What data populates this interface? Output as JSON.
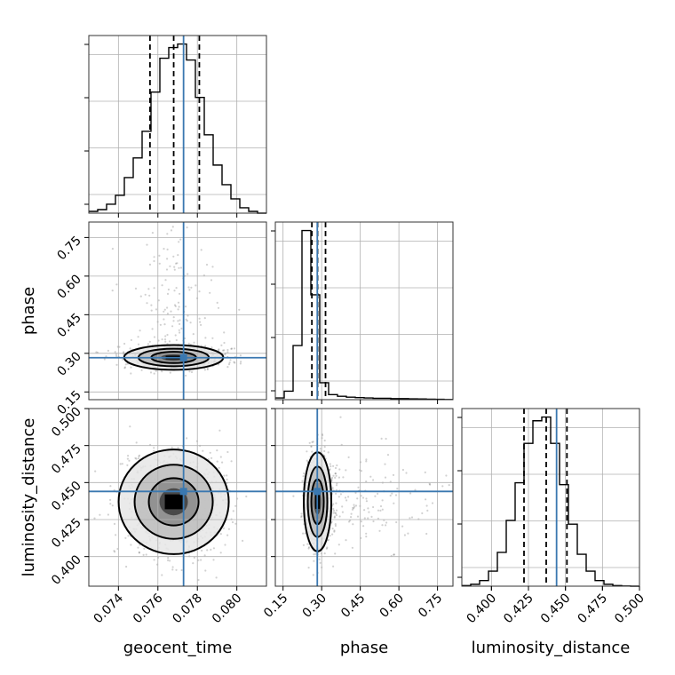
{
  "chart_data": {
    "type": "corner",
    "parameters": [
      {
        "name": "geocent_time",
        "axis_label": "geocent_time",
        "range": [
          0.0725,
          0.0815
        ],
        "ticks": [
          0.074,
          0.076,
          0.078,
          0.08
        ],
        "tick_labels": [
          "0.074",
          "0.076",
          "0.078",
          "0.080"
        ],
        "truth": 0.0773,
        "quantiles": [
          0.0756,
          0.0768,
          0.0781
        ],
        "hist": [
          1,
          2,
          5,
          10,
          20,
          31,
          46,
          68,
          87,
          93,
          95,
          86,
          65,
          44,
          27,
          16,
          8,
          3,
          1,
          0
        ]
      },
      {
        "name": "phase",
        "axis_label": "phase",
        "range": [
          0.12,
          0.81
        ],
        "ticks": [
          0.15,
          0.3,
          0.45,
          0.6,
          0.75
        ],
        "tick_labels": [
          "0.15",
          "0.30",
          "0.45",
          "0.60",
          "0.75"
        ],
        "truth": 0.283,
        "quantiles": [
          0.262,
          0.284,
          0.315
        ],
        "hist": [
          1,
          5,
          32,
          100,
          62,
          10,
          3,
          2,
          1.5,
          1.2,
          1,
          0.8,
          0.8,
          0.6,
          0.6,
          0.5,
          0.4,
          0.3,
          0.2,
          0.1
        ]
      },
      {
        "name": "luminosity_distance",
        "axis_label": "luminosity_distance",
        "range": [
          0.38,
          0.5
        ],
        "ticks": [
          0.4,
          0.425,
          0.45,
          0.475,
          0.5
        ],
        "tick_labels": [
          "0.400",
          "0.425",
          "0.450",
          "0.475",
          "0.500"
        ],
        "truth": 0.444,
        "quantiles": [
          0.422,
          0.437,
          0.451
        ],
        "hist": [
          0.3,
          1,
          3,
          8,
          18,
          35,
          55,
          76,
          88,
          90,
          76,
          54,
          33,
          17,
          8,
          3,
          1,
          0.3,
          0.1,
          0
        ]
      }
    ],
    "x_labels": [
      "geocent_time",
      "phase",
      "luminosity_distance"
    ],
    "y_labels": [
      "phase",
      "luminosity_distance"
    ],
    "truth_color": "#3a78b0",
    "quantile_style": "dashed",
    "grid": true
  }
}
